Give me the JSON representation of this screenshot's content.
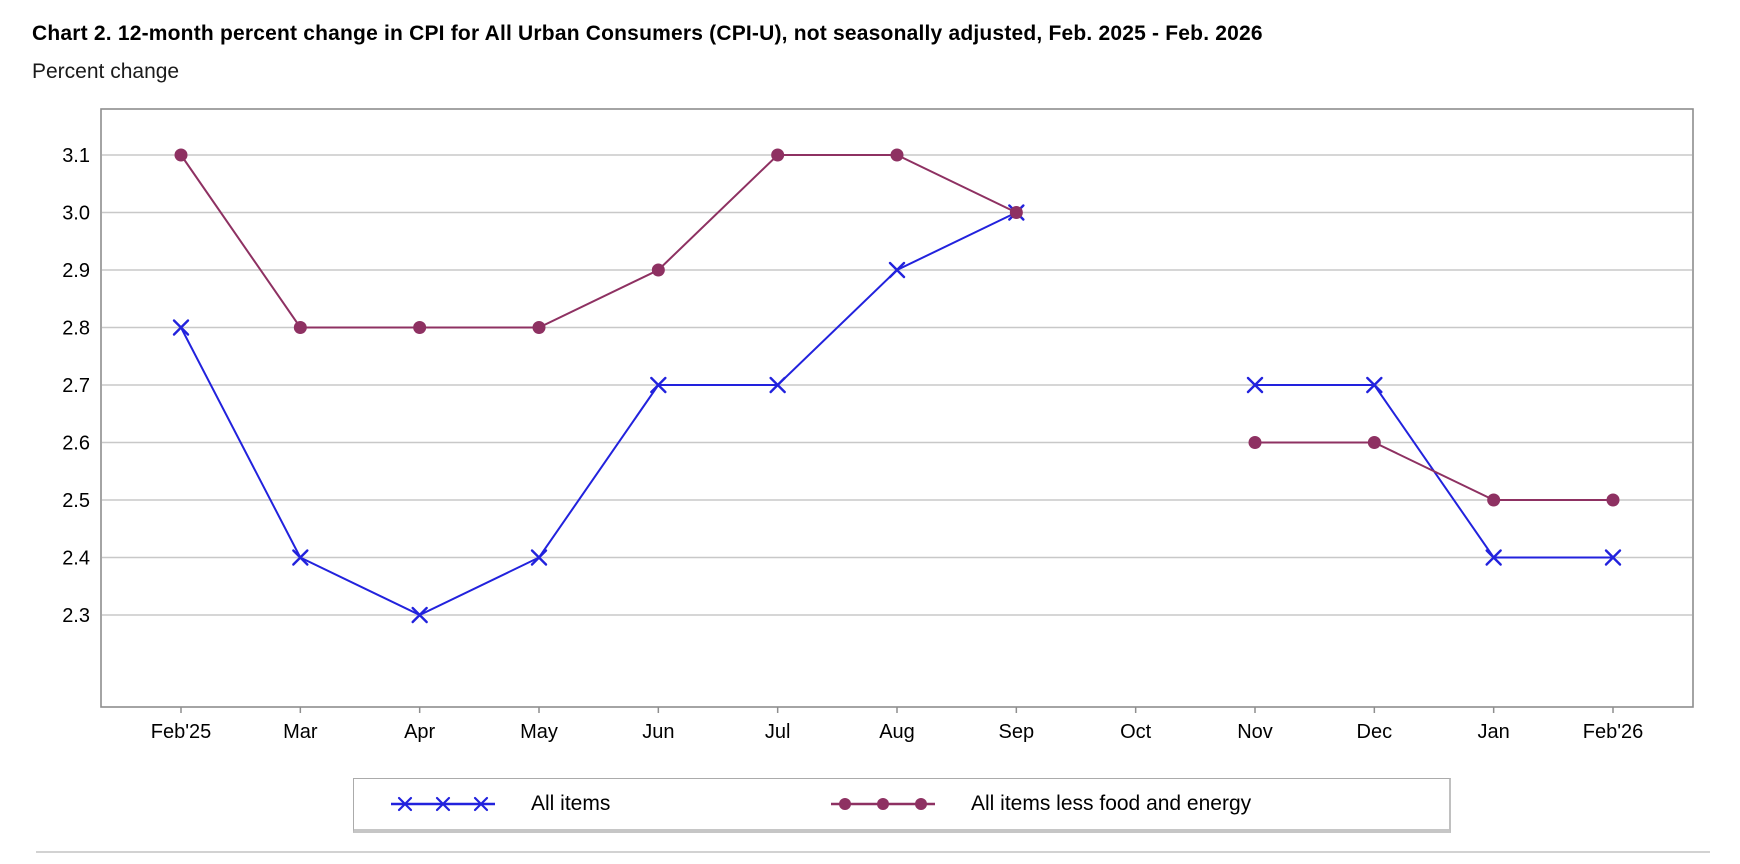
{
  "chart_data": {
    "type": "line",
    "title": "Chart 2. 12-month percent change in CPI for All Urban Consumers (CPI-U), not seasonally adjusted, Feb. 2025 - Feb. 2026",
    "ylabel": "Percent change",
    "xlabel": "",
    "categories": [
      "Feb'25",
      "Mar",
      "Apr",
      "May",
      "Jun",
      "Jul",
      "Aug",
      "Sep",
      "Oct",
      "Nov",
      "Dec",
      "Jan",
      "Feb'26"
    ],
    "series": [
      {
        "name": "All items",
        "color": "#2222dd",
        "marker": "x",
        "values": [
          2.8,
          2.4,
          2.3,
          2.4,
          2.7,
          2.7,
          2.9,
          3.0,
          null,
          2.7,
          2.7,
          2.4,
          2.4
        ]
      },
      {
        "name": "All items less food and energy",
        "color": "#8e3162",
        "marker": "dot",
        "values": [
          3.1,
          2.8,
          2.8,
          2.8,
          2.9,
          3.1,
          3.1,
          3.0,
          null,
          2.6,
          2.6,
          2.5,
          2.5
        ]
      }
    ],
    "y_ticks": [
      3.1,
      3.0,
      2.9,
      2.8,
      2.7,
      2.6,
      2.5,
      2.4,
      2.3
    ],
    "ylim": [
      2.14,
      3.18
    ],
    "grid": "horizontal",
    "legend_position": "bottom"
  }
}
